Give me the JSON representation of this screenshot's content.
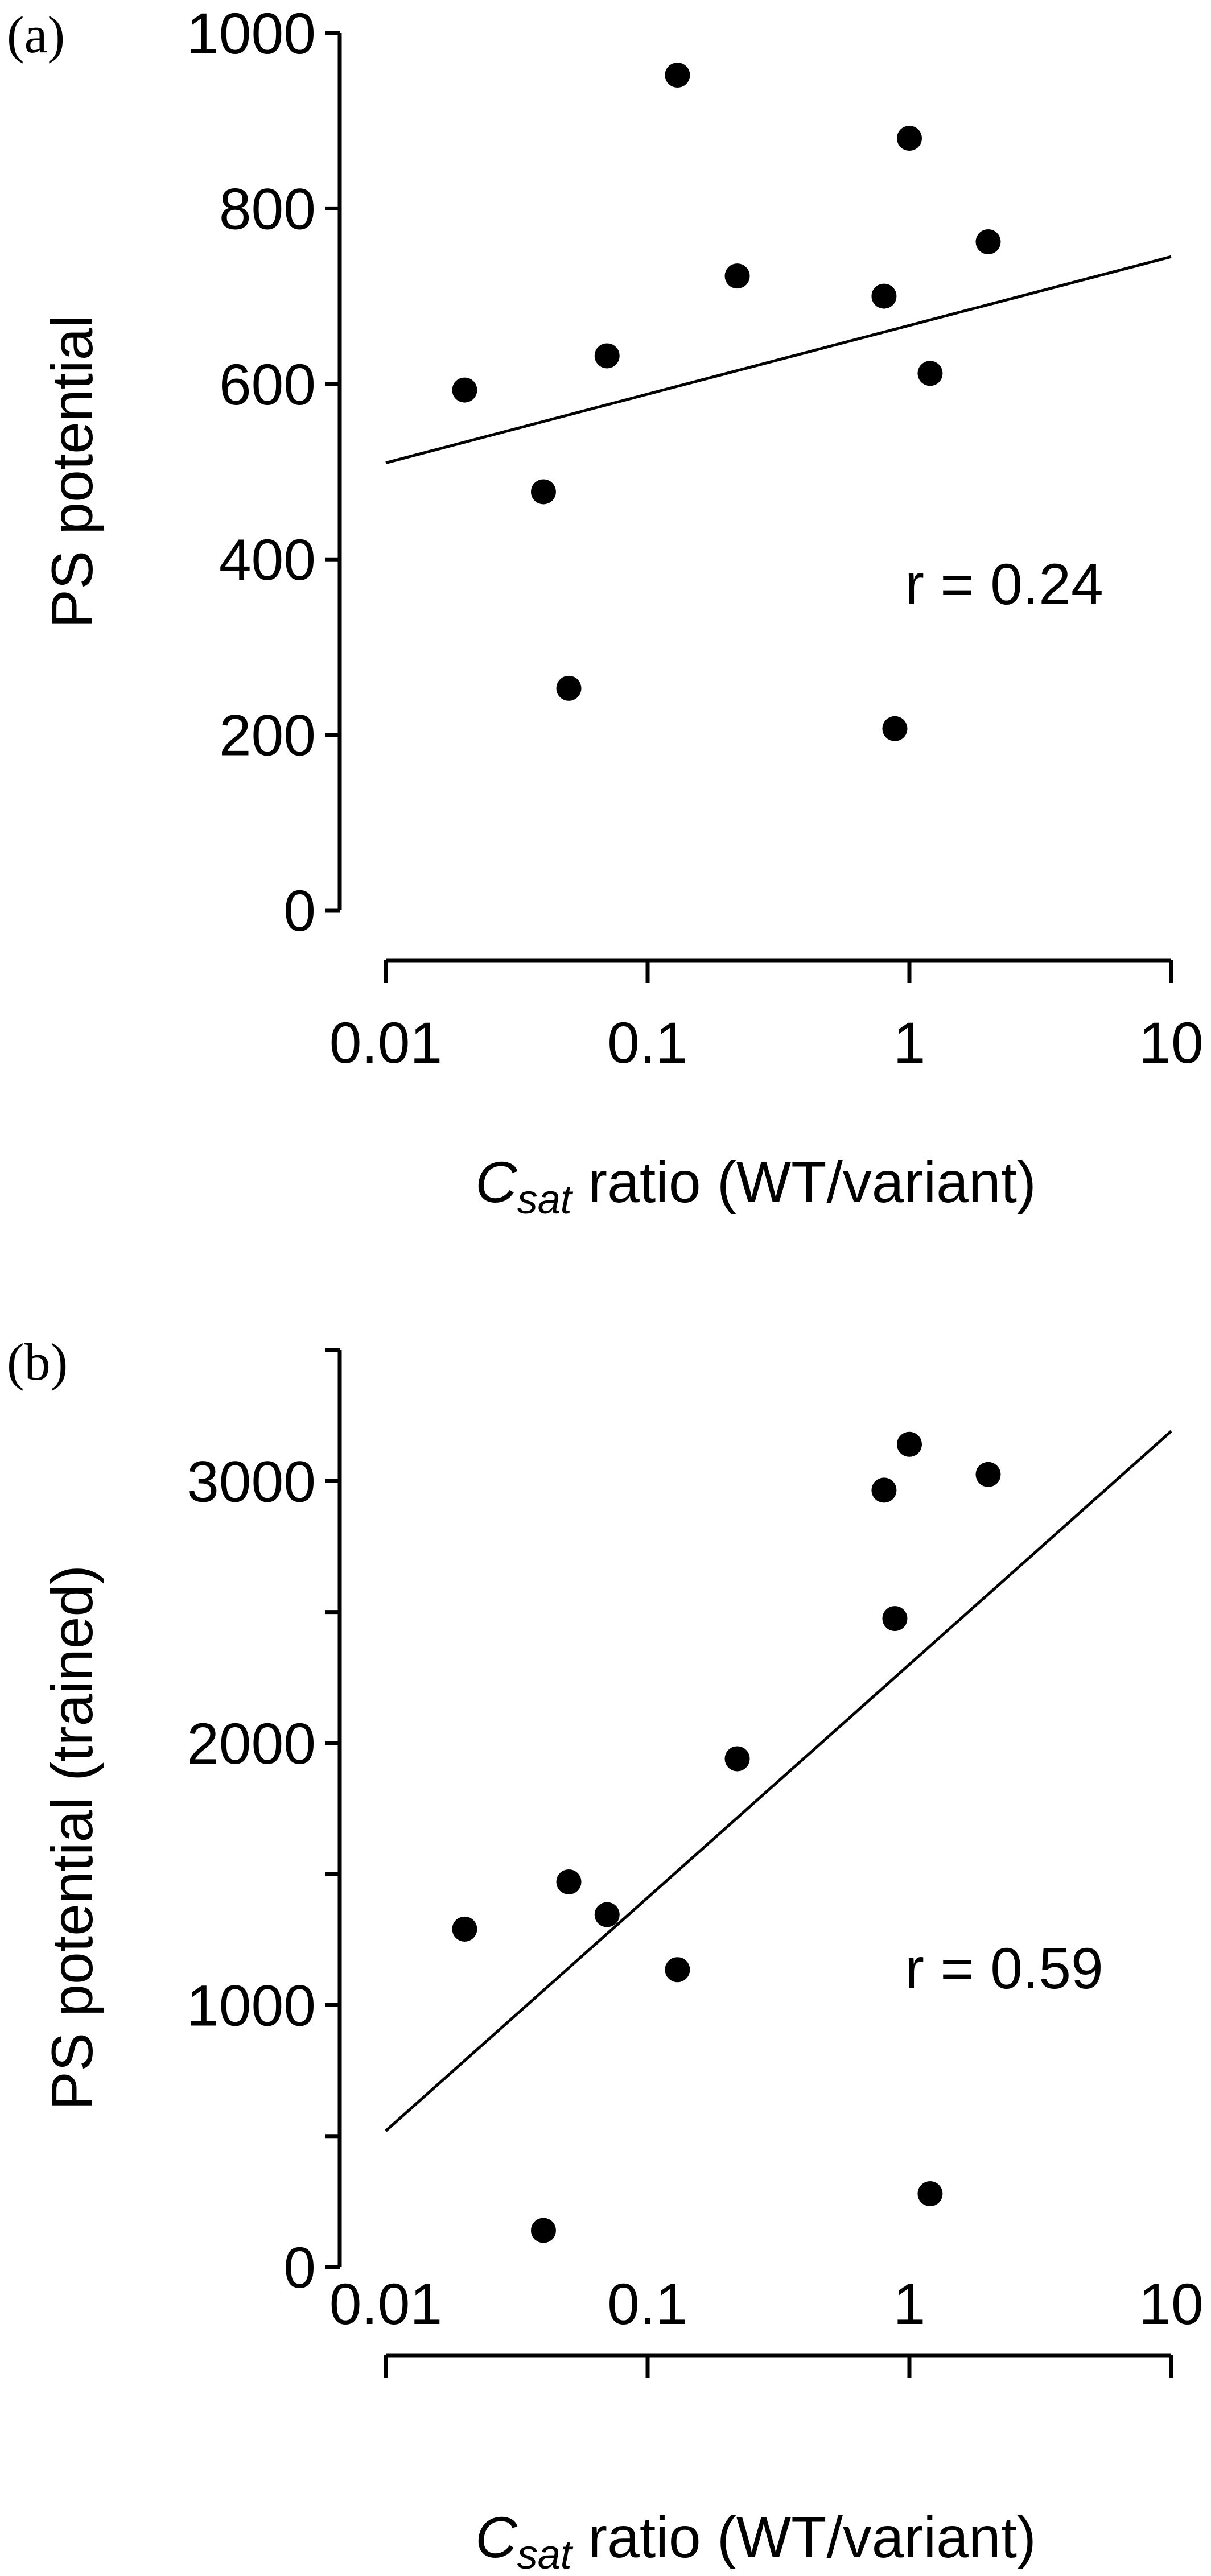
{
  "chart_data": [
    {
      "type": "scatter",
      "panel_label": "(a)",
      "ylabel": "PS potential",
      "xlabel": {
        "italic": "C",
        "subscript": "sat",
        "rest": " ratio (WT/variant)"
      },
      "x_scale": "log",
      "xlim": [
        0.01,
        10
      ],
      "ylim": [
        0,
        1000
      ],
      "x_ticks": [
        0.01,
        0.1,
        1,
        10
      ],
      "x_tick_labels": [
        "0.01",
        "0.1",
        "1",
        "10"
      ],
      "y_ticks": [
        0,
        200,
        400,
        600,
        800,
        1000
      ],
      "y_tick_labels": [
        "0",
        "200",
        "400",
        "600",
        "800",
        "1000"
      ],
      "y_minor_ticks": [],
      "grid": false,
      "points": [
        {
          "x": 0.02,
          "y": 593
        },
        {
          "x": 0.04,
          "y": 477
        },
        {
          "x": 0.05,
          "y": 253
        },
        {
          "x": 0.07,
          "y": 632
        },
        {
          "x": 0.13,
          "y": 952
        },
        {
          "x": 0.22,
          "y": 723
        },
        {
          "x": 0.8,
          "y": 700
        },
        {
          "x": 0.88,
          "y": 207
        },
        {
          "x": 1.0,
          "y": 880
        },
        {
          "x": 1.2,
          "y": 612
        },
        {
          "x": 2.0,
          "y": 762
        }
      ],
      "fit_line": {
        "x": [
          0.01,
          10
        ],
        "y": [
          510,
          745
        ]
      },
      "annotation": "r = 0.24"
    },
    {
      "type": "scatter",
      "panel_label": "(b)",
      "ylabel": "PS potential (trained)",
      "xlabel": {
        "italic": "C",
        "subscript": "sat",
        "rest": " ratio (WT/variant)"
      },
      "x_scale": "log",
      "xlim": [
        0.01,
        10
      ],
      "ylim": [
        0,
        3500
      ],
      "x_ticks": [
        0.01,
        0.1,
        1,
        10
      ],
      "x_tick_labels": [
        "0.01",
        "0.1",
        "1",
        "10"
      ],
      "y_ticks": [
        0,
        1000,
        2000,
        3000
      ],
      "y_tick_labels": [
        "0",
        "1000",
        "2000",
        "3000"
      ],
      "y_minor_ticks": [
        500,
        1500,
        2500,
        3500
      ],
      "grid": false,
      "points": [
        {
          "x": 0.02,
          "y": 1290
        },
        {
          "x": 0.04,
          "y": 140
        },
        {
          "x": 0.05,
          "y": 1470
        },
        {
          "x": 0.07,
          "y": 1345
        },
        {
          "x": 0.13,
          "y": 1135
        },
        {
          "x": 0.22,
          "y": 1940
        },
        {
          "x": 0.8,
          "y": 2965
        },
        {
          "x": 0.88,
          "y": 2475
        },
        {
          "x": 1.0,
          "y": 3140
        },
        {
          "x": 1.2,
          "y": 280
        },
        {
          "x": 2.0,
          "y": 3025
        }
      ],
      "fit_line": {
        "x": [
          0.01,
          10
        ],
        "y": [
          520,
          3190
        ]
      },
      "annotation": "r = 0.59"
    }
  ]
}
